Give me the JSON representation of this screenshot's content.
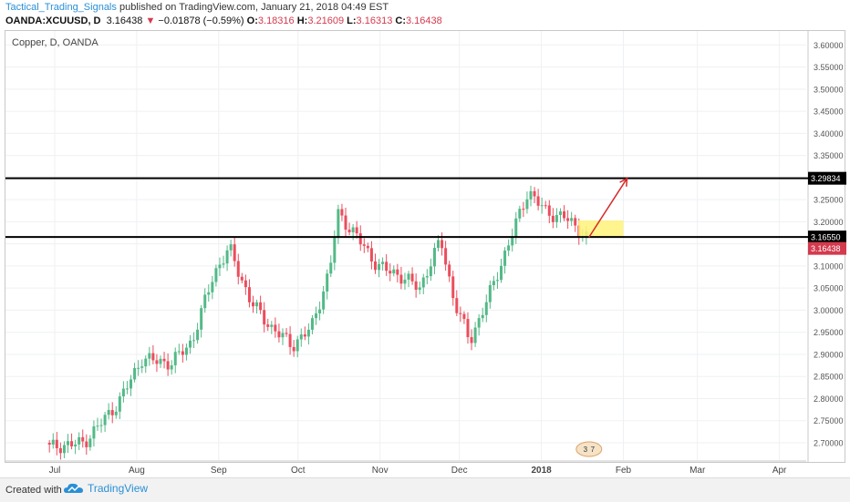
{
  "header": {
    "author": "Tactical_Trading_Signals",
    "published": "published on TradingView.com, January 21, 2018 04:49 EST",
    "symbol": "OANDA:XCUUSD, D",
    "last": "3.16438",
    "arrow": "▼",
    "change": "−0.01878 (−0.59%)",
    "o_label": "O:",
    "o": "3.18316",
    "h_label": "H:",
    "h": "3.21609",
    "l_label": "L:",
    "l": "3.16313",
    "c_label": "C:",
    "c": "3.16438"
  },
  "chart_title": "Copper, D, OANDA",
  "footer": {
    "created": "Created with",
    "brand": "TradingView"
  },
  "colors": {
    "up": "#53b987",
    "down": "#eb4d5c",
    "line": "#000000",
    "arrow": "#d62a2a",
    "zone": "#fff27a",
    "grid": "#eef0f3",
    "badge": "#d33a4e"
  },
  "chart_data": {
    "type": "candlestick",
    "title": "Copper, D, OANDA",
    "y_ticks": [
      "3.60000",
      "3.55000",
      "3.50000",
      "3.45000",
      "3.40000",
      "3.35000",
      "3.30000",
      "3.25000",
      "3.20000",
      "3.15000",
      "3.10000",
      "3.05000",
      "3.00000",
      "2.95000",
      "2.90000",
      "2.85000",
      "2.80000",
      "2.75000",
      "2.70000"
    ],
    "x_ticks": [
      "Jul",
      "Aug",
      "Sep",
      "Oct",
      "Nov",
      "Dec",
      "2018",
      "Feb",
      "Mar",
      "Apr"
    ],
    "ylim": [
      2.66,
      3.62
    ],
    "grid": true,
    "levels": [
      {
        "name": "resistance",
        "value": 3.29834,
        "label": "3.29834"
      },
      {
        "name": "support",
        "value": 3.1655,
        "label": "3.16550"
      }
    ],
    "last_price": {
      "value": 3.16438,
      "label": "3.16438"
    },
    "projection": {
      "from": [
        "2018-01-19",
        3.165
      ],
      "to": [
        "2018-02-01",
        3.298
      ]
    },
    "zone": {
      "from": "2018-01-15",
      "to": "2018-02-01",
      "low": 3.165,
      "high": 3.203
    },
    "markers": [
      "3",
      "7"
    ],
    "closes": [
      [
        "2017-06-29",
        2.69
      ],
      [
        "2017-07-12",
        2.7
      ],
      [
        "2017-07-25",
        2.79
      ],
      [
        "2017-08-03",
        2.89
      ],
      [
        "2017-08-14",
        2.88
      ],
      [
        "2017-08-22",
        2.93
      ],
      [
        "2017-08-30",
        3.08
      ],
      [
        "2017-09-05",
        3.14
      ],
      [
        "2017-09-13",
        3.02
      ],
      [
        "2017-09-21",
        2.96
      ],
      [
        "2017-09-29",
        2.92
      ],
      [
        "2017-10-06",
        2.96
      ],
      [
        "2017-10-13",
        3.09
      ],
      [
        "2017-10-16",
        3.22
      ],
      [
        "2017-10-24",
        3.16
      ],
      [
        "2017-10-31",
        3.1
      ],
      [
        "2017-11-08",
        3.08
      ],
      [
        "2017-11-16",
        3.05
      ],
      [
        "2017-11-24",
        3.16
      ],
      [
        "2017-11-29",
        3.02
      ],
      [
        "2017-12-05",
        2.93
      ],
      [
        "2017-12-12",
        3.03
      ],
      [
        "2017-12-19",
        3.14
      ],
      [
        "2017-12-27",
        3.27
      ],
      [
        "2018-01-03",
        3.22
      ],
      [
        "2018-01-10",
        3.21
      ],
      [
        "2018-01-19",
        3.16
      ]
    ]
  }
}
